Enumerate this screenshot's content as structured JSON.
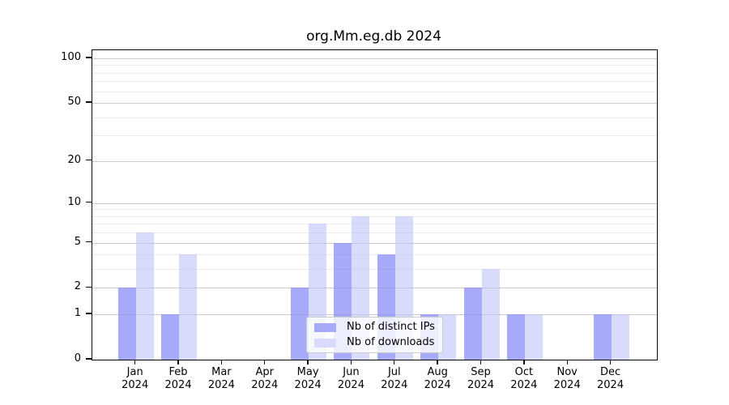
{
  "title": "org.Mm.eg.db 2024",
  "legend": {
    "items": [
      {
        "label": "Nb of distinct IPs",
        "color": "#a6aaf8"
      },
      {
        "label": "Nb of downloads",
        "color": "#d8dbfb"
      }
    ]
  },
  "chart_data": {
    "type": "bar",
    "title": "org.Mm.eg.db 2024",
    "categories": [
      "Jan",
      "Feb",
      "Mar",
      "Apr",
      "May",
      "Jun",
      "Jul",
      "Aug",
      "Sep",
      "Oct",
      "Nov",
      "Dec"
    ],
    "year_label": "2024",
    "series": [
      {
        "name": "Nb of distinct IPs",
        "color": "#a6aaf8",
        "values": [
          2,
          1,
          0,
          0,
          2,
          5,
          4,
          1,
          2,
          1,
          0,
          1
        ]
      },
      {
        "name": "Nb of downloads",
        "color": "#d8dbfb",
        "values": [
          6,
          4,
          0,
          0,
          7,
          8,
          8,
          1,
          3,
          1,
          0,
          1
        ]
      }
    ],
    "xlabel": "",
    "ylabel": "",
    "ylim": [
      0,
      100
    ],
    "yscale": "log1p",
    "yticks": [
      0,
      1,
      2,
      5,
      10,
      20,
      50,
      100
    ],
    "yticks_minor": [
      3,
      4,
      6,
      7,
      8,
      9,
      30,
      40,
      60,
      70,
      80,
      90
    ],
    "grid": true,
    "legend_position": "lower-center-inside"
  }
}
